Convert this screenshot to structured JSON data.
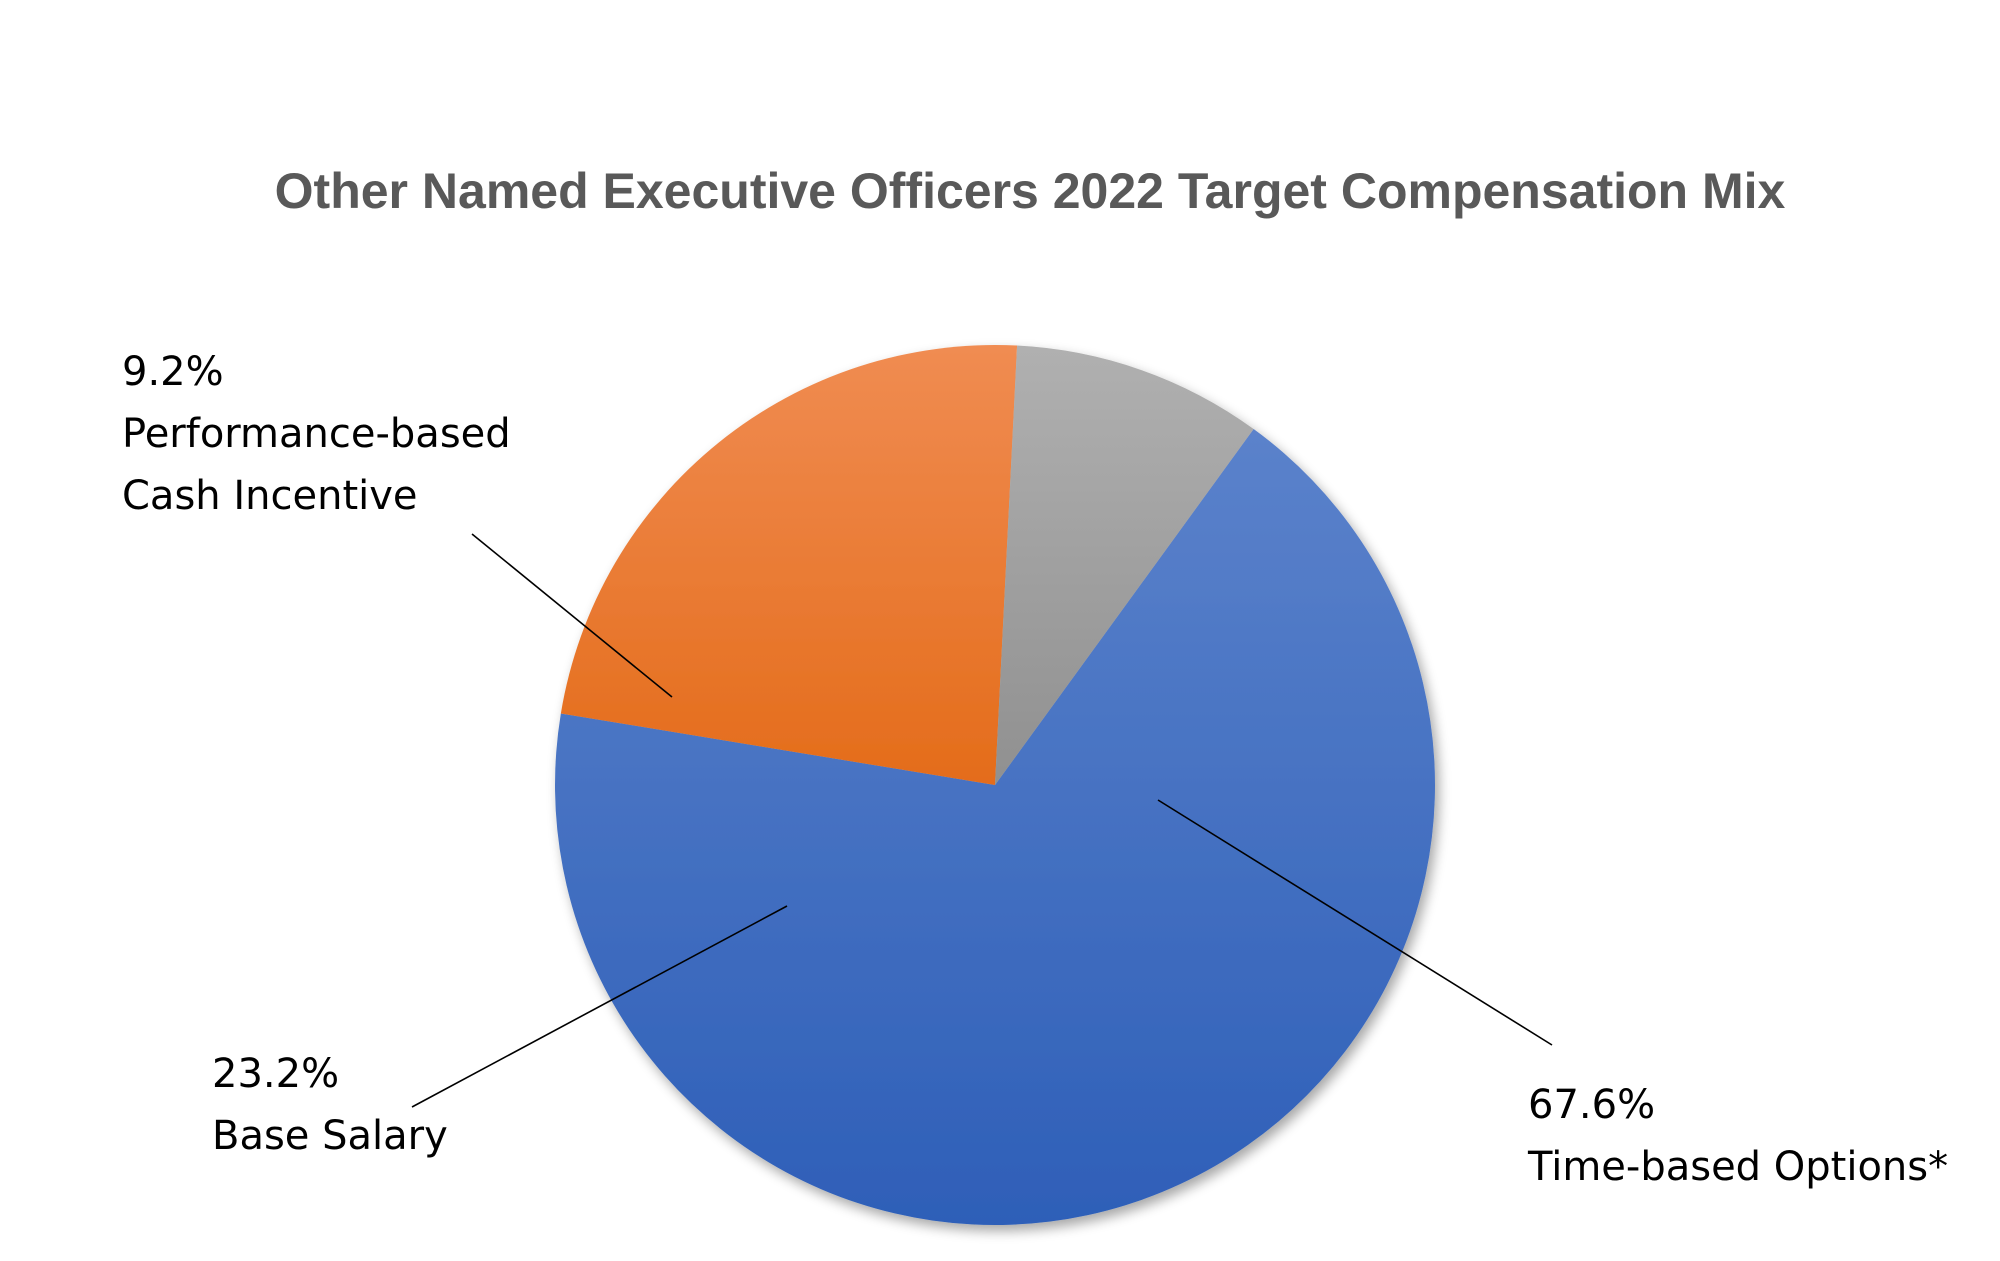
{
  "chart_data": {
    "type": "pie",
    "title": "Other Named Executive Officers 2022 Target Compensation Mix",
    "slices": [
      {
        "label": "Time-based Options*",
        "value": 67.6,
        "value_label": "67.6%",
        "color": "#4472C4",
        "color_light": "#5B82CB",
        "color_dark": "#2E5FB8"
      },
      {
        "label": "Base Salary",
        "value": 23.2,
        "value_label": "23.2%",
        "color": "#ED7D31",
        "color_light": "#F08C52",
        "color_dark": "#E46C1A"
      },
      {
        "label": "Performance-based Cash Incentive",
        "value": 9.2,
        "value_label": "9.2%",
        "label_lines": [
          "Performance-based",
          "Cash Incentive"
        ],
        "color": "#A5A5A5",
        "color_light": "#B0B0B0",
        "color_dark": "#909090"
      }
    ],
    "start_angle_deg": -54,
    "direction": "clockwise",
    "legend": "none",
    "data_labels": "outside-with-leader-lines"
  }
}
